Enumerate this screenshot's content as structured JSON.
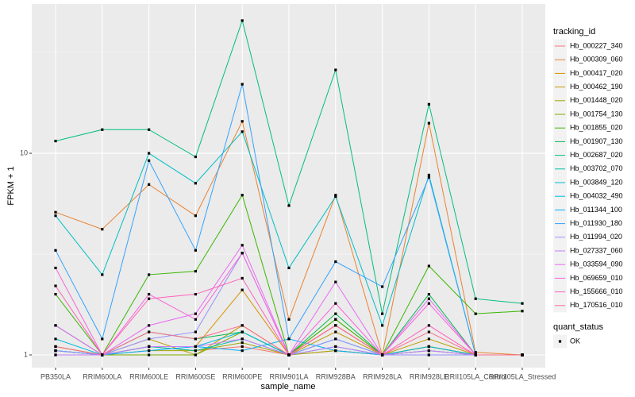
{
  "chart_data": {
    "type": "line",
    "log_scale": true,
    "grid": true,
    "x_label": "sample_name",
    "y_label": "FPKM + 1",
    "legend_title": "tracking_id",
    "legend_position": "right",
    "point_color": "#000000",
    "point_legend_title": "quant_status",
    "point_legend_label": "OK",
    "categories": [
      "PB350LA",
      "RRIM600LA",
      "RRIM600LE",
      "RRIM600SE",
      "RRIM600PE",
      "RRIM901LA",
      "RRIM928BA",
      "RRIM928LA",
      "RRIM928LE",
      "RRII105LA_Control",
      "RRII105LA_Stressed"
    ],
    "ylim": [
      0.865,
      55
    ],
    "yticks": [
      1,
      10
    ],
    "series": [
      {
        "name": "Hb_000227_340",
        "color": "#F8766D",
        "values": [
          1.05,
          1.0,
          1.1,
          1.05,
          1.1,
          1.0,
          1.05,
          1.0,
          1.05,
          1.0,
          1.0
        ]
      },
      {
        "name": "Hb_000309_060",
        "color": "#EA8331",
        "values": [
          5.1,
          4.2,
          7.0,
          4.9,
          14.4,
          1.5,
          6.2,
          1.0,
          14.1,
          1.03,
          1.0
        ]
      },
      {
        "name": "Hb_000417_020",
        "color": "#D89000",
        "values": [
          1.0,
          1.0,
          1.1,
          1.1,
          2.1,
          1.0,
          1.4,
          1.0,
          1.1,
          1.0,
          1.0
        ]
      },
      {
        "name": "Hb_000462_190",
        "color": "#C09B00",
        "values": [
          1.1,
          1.0,
          1.2,
          1.0,
          1.4,
          1.0,
          1.3,
          1.0,
          1.2,
          1.0,
          1.0
        ]
      },
      {
        "name": "Hb_001448_020",
        "color": "#A3A500",
        "values": [
          1.05,
          1.0,
          1.05,
          1.05,
          1.15,
          1.0,
          1.05,
          1.0,
          1.1,
          1.0,
          1.0
        ]
      },
      {
        "name": "Hb_001754_130",
        "color": "#7CAE00",
        "values": [
          1.1,
          1.0,
          1.0,
          1.0,
          1.3,
          1.0,
          1.5,
          1.0,
          1.1,
          1.0,
          1.0
        ]
      },
      {
        "name": "Hb_001855_020",
        "color": "#39B600",
        "values": [
          2.0,
          1.0,
          2.5,
          2.6,
          6.2,
          1.0,
          1.5,
          1.0,
          2.76,
          1.6,
          1.65
        ]
      },
      {
        "name": "Hb_001907_130",
        "color": "#00BB4E",
        "values": [
          1.4,
          1.0,
          1.3,
          1.2,
          1.3,
          1.0,
          1.6,
          1.0,
          2.0,
          1.0,
          1.0
        ]
      },
      {
        "name": "Hb_002687_020",
        "color": "#00BF7D",
        "values": [
          11.5,
          13.1,
          13.1,
          9.6,
          45.5,
          5.5,
          25.9,
          1.6,
          17.5,
          1.9,
          1.8
        ]
      },
      {
        "name": "Hb_003702_070",
        "color": "#00C1A3",
        "values": [
          1.05,
          1.0,
          1.1,
          1.05,
          1.2,
          1.0,
          1.1,
          1.0,
          1.05,
          1.0,
          1.0
        ]
      },
      {
        "name": "Hb_003849_120",
        "color": "#00BFC4",
        "values": [
          4.9,
          2.5,
          10.0,
          7.1,
          12.8,
          2.7,
          6.1,
          1.4,
          7.8,
          1.0,
          1.0
        ]
      },
      {
        "name": "Hb_004032_490",
        "color": "#00BAE0",
        "values": [
          1.2,
          1.0,
          1.1,
          1.1,
          1.3,
          1.0,
          1.2,
          1.0,
          1.1,
          1.0,
          1.0
        ]
      },
      {
        "name": "Hb_011344_100",
        "color": "#00B0F6",
        "values": [
          1.05,
          1.0,
          1.05,
          1.1,
          1.05,
          1.2,
          1.05,
          1.0,
          1.0,
          1.0,
          1.0
        ]
      },
      {
        "name": "Hb_011930_180",
        "color": "#35A2FF",
        "values": [
          3.3,
          1.2,
          9.2,
          3.3,
          22.0,
          1.2,
          2.9,
          2.18,
          7.6,
          1.0,
          1.0
        ]
      },
      {
        "name": "Hb_011994_020",
        "color": "#9590FF",
        "values": [
          1.05,
          1.0,
          1.2,
          1.3,
          3.2,
          1.0,
          1.2,
          1.0,
          1.0,
          1.0,
          1.0
        ]
      },
      {
        "name": "Hb_027337_060",
        "color": "#C77CFF",
        "values": [
          1.0,
          1.0,
          1.1,
          1.1,
          1.2,
          1.0,
          1.1,
          1.0,
          1.05,
          1.0,
          1.0
        ]
      },
      {
        "name": "Hb_033594_090",
        "color": "#E76BF3",
        "values": [
          1.4,
          1.0,
          1.4,
          1.6,
          3.5,
          1.0,
          2.3,
          1.0,
          1.9,
          1.0,
          1.0
        ]
      },
      {
        "name": "Hb_069659_010",
        "color": "#FA62DB",
        "values": [
          2.7,
          1.0,
          2.0,
          1.5,
          3.2,
          1.0,
          1.8,
          1.0,
          1.8,
          1.0,
          1.0
        ]
      },
      {
        "name": "Hb_155666_010",
        "color": "#FF62BC",
        "values": [
          2.2,
          1.0,
          1.9,
          2.0,
          2.4,
          1.0,
          1.4,
          1.0,
          1.4,
          1.0,
          1.0
        ]
      },
      {
        "name": "Hb_170516_010",
        "color": "#FF6C91",
        "values": [
          1.1,
          1.0,
          1.3,
          1.2,
          1.4,
          1.0,
          1.4,
          1.0,
          1.3,
          1.0,
          1.0
        ]
      }
    ]
  }
}
